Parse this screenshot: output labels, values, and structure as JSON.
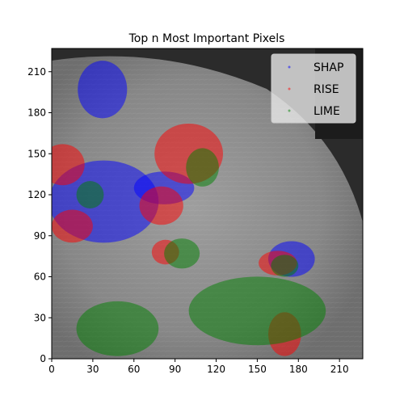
{
  "chart_data": {
    "type": "scatter",
    "title": "Top n Most Important Pixels",
    "xlabel": "",
    "ylabel": "",
    "xlim": [
      0,
      227
    ],
    "ylim": [
      0,
      227
    ],
    "xticks": [
      0,
      30,
      60,
      90,
      120,
      150,
      180,
      210
    ],
    "yticks": [
      0,
      30,
      60,
      90,
      120,
      150,
      180,
      210
    ],
    "legend_position": "top-right",
    "background": "grayscale mammogram image",
    "series": [
      {
        "name": "SHAP",
        "color": "#0000ff",
        "regions": [
          {
            "cx": 37,
            "cy": 197,
            "rx": 18,
            "ry": 21
          },
          {
            "cx": 38,
            "cy": 115,
            "rx": 40,
            "ry": 30
          },
          {
            "cx": 82,
            "cy": 125,
            "rx": 22,
            "ry": 12
          },
          {
            "cx": 175,
            "cy": 73,
            "rx": 17,
            "ry": 13
          }
        ]
      },
      {
        "name": "RISE",
        "color": "#ff0000",
        "regions": [
          {
            "cx": 8,
            "cy": 142,
            "rx": 16,
            "ry": 15
          },
          {
            "cx": 15,
            "cy": 97,
            "rx": 15,
            "ry": 12
          },
          {
            "cx": 100,
            "cy": 150,
            "rx": 25,
            "ry": 22
          },
          {
            "cx": 80,
            "cy": 112,
            "rx": 16,
            "ry": 14
          },
          {
            "cx": 170,
            "cy": 18,
            "rx": 12,
            "ry": 16
          },
          {
            "cx": 83,
            "cy": 78,
            "rx": 10,
            "ry": 9
          },
          {
            "cx": 165,
            "cy": 70,
            "rx": 14,
            "ry": 9
          }
        ]
      },
      {
        "name": "LIME",
        "color": "#008000",
        "regions": [
          {
            "cx": 48,
            "cy": 22,
            "rx": 30,
            "ry": 20
          },
          {
            "cx": 150,
            "cy": 35,
            "rx": 50,
            "ry": 25
          },
          {
            "cx": 28,
            "cy": 120,
            "rx": 10,
            "ry": 10
          },
          {
            "cx": 110,
            "cy": 140,
            "rx": 12,
            "ry": 14
          },
          {
            "cx": 95,
            "cy": 77,
            "rx": 13,
            "ry": 11
          },
          {
            "cx": 170,
            "cy": 68,
            "rx": 10,
            "ry": 8
          }
        ]
      }
    ]
  }
}
